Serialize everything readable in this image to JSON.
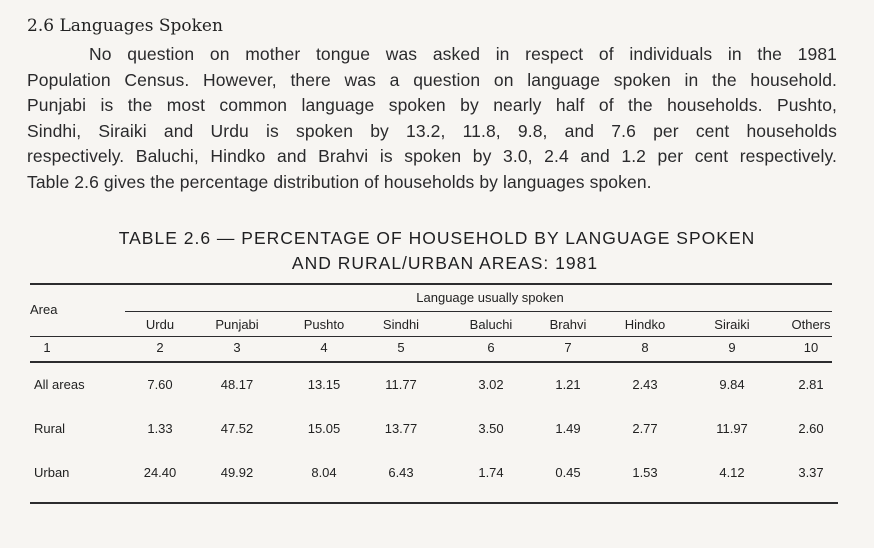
{
  "section": {
    "title": "2.6 Languages Spoken",
    "paragraph_lines": [
      "No question on mother tongue was asked in respect of individuals in the 1981",
      "Population Census. However, there was a question on language spoken in the household.",
      "Punjabi is the most common language spoken by nearly half of the households. Pushto,",
      "Sindhi, Siraiki and Urdu is spoken by 13.2, 11.8, 9.8, and 7.6 per cent households",
      "respectively. Baluchi, Hindko and Brahvi is spoken by 3.0, 2.4 and 1.2 per cent respectively.",
      "Table 2.6 gives the percentage distribution of households by languages spoken."
    ]
  },
  "table": {
    "title_line1": "TABLE 2.6 — PERCENTAGE OF HOUSEHOLD BY LANGUAGE SPOKEN",
    "title_line2": "AND RURAL/URBAN AREAS: 1981",
    "area_header": "Area",
    "group_header": "Language usually spoken",
    "columns": [
      "Urdu",
      "Punjabi",
      "Pushto",
      "Sindhi",
      "Baluchi",
      "Brahvi",
      "Hindko",
      "Siraiki",
      "Others"
    ],
    "column_numbers": [
      "1",
      "2",
      "3",
      "4",
      "5",
      "6",
      "7",
      "8",
      "9",
      "10"
    ],
    "rows": [
      {
        "area": "All areas",
        "values": [
          "7.60",
          "48.17",
          "13.15",
          "11.77",
          "3.02",
          "1.21",
          "2.43",
          "9.84",
          "2.81"
        ]
      },
      {
        "area": "Rural",
        "values": [
          "1.33",
          "47.52",
          "15.05",
          "13.77",
          "3.50",
          "1.49",
          "2.77",
          "11.97",
          "2.60"
        ]
      },
      {
        "area": "Urban",
        "values": [
          "24.40",
          "49.92",
          "8.04",
          "6.43",
          "1.74",
          "0.45",
          "1.53",
          "4.12",
          "3.37"
        ]
      }
    ]
  }
}
